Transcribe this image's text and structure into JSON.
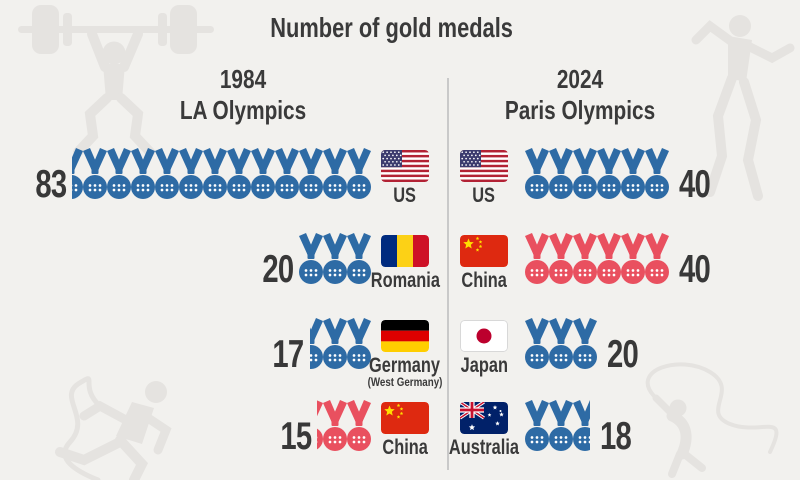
{
  "title": "Number of gold medals",
  "colors": {
    "background": "#f2f1ee",
    "text": "#3a3a3a",
    "medal_blue": "#2e6ba5",
    "medal_red": "#e9505f",
    "divider": "#c9c9c9",
    "silhouette": "#e5e3e0"
  },
  "chart_data": {
    "type": "pictograph",
    "title": "Number of gold medals",
    "icon": "gold-medal",
    "medals_per_icon": 6.67,
    "legend_position": "none",
    "columns": [
      {
        "year": "1984",
        "event": "LA Olympics",
        "side": "left",
        "rows": [
          {
            "country": "US",
            "gold_medals": 83,
            "medal_color": "blue"
          },
          {
            "country": "Romania",
            "gold_medals": 20,
            "medal_color": "blue"
          },
          {
            "country": "Germany",
            "note": "(West Germany)",
            "gold_medals": 17,
            "medal_color": "blue"
          },
          {
            "country": "China",
            "gold_medals": 15,
            "medal_color": "red"
          }
        ]
      },
      {
        "year": "2024",
        "event": "Paris Olympics",
        "side": "right",
        "rows": [
          {
            "country": "US",
            "gold_medals": 40,
            "medal_color": "blue"
          },
          {
            "country": "China",
            "gold_medals": 40,
            "medal_color": "red"
          },
          {
            "country": "Japan",
            "gold_medals": 20,
            "medal_color": "blue"
          },
          {
            "country": "Australia",
            "gold_medals": 18,
            "medal_color": "blue"
          }
        ]
      }
    ]
  }
}
